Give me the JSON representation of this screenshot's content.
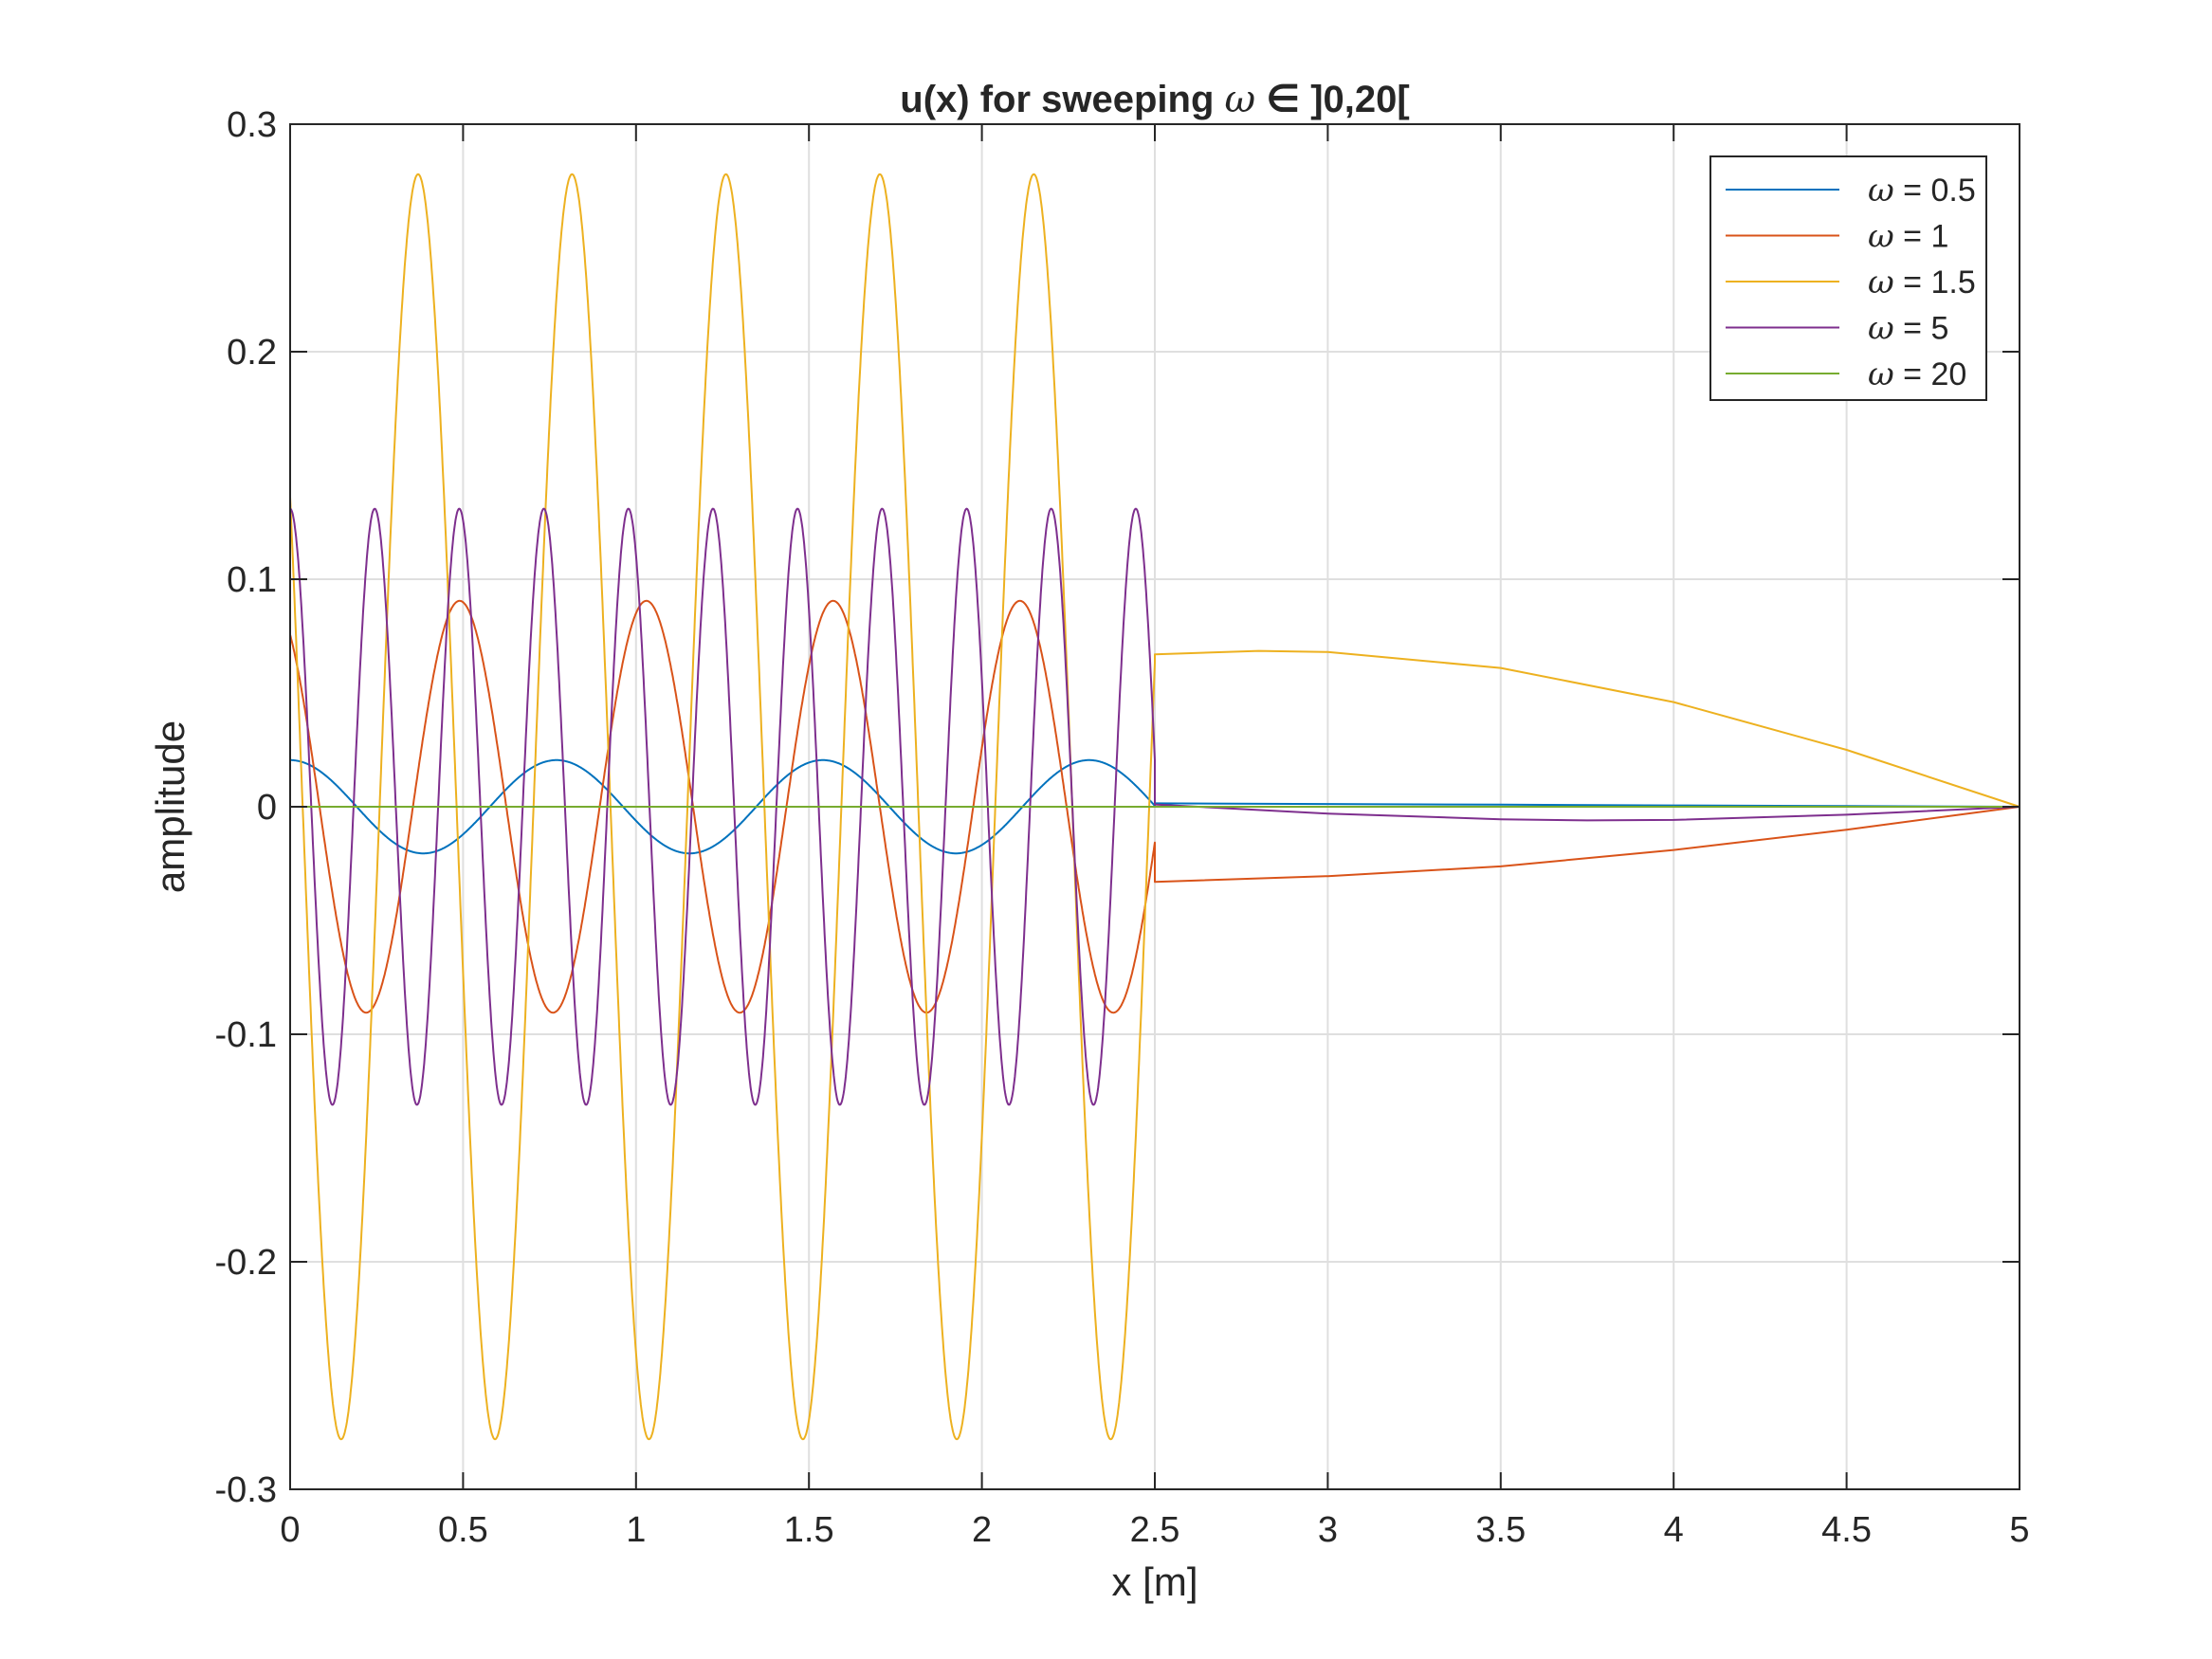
{
  "chart_data": {
    "type": "line",
    "title": {
      "prefix": "u(x) for sweeping ",
      "symbol": "ω",
      "suffix": " ∈ ]0,20["
    },
    "xlabel": "x [m]",
    "ylabel": "amplitude",
    "xlim": [
      0,
      5
    ],
    "ylim": [
      -0.3,
      0.3
    ],
    "xticks": [
      0,
      0.5,
      1,
      1.5,
      2,
      2.5,
      3,
      3.5,
      4,
      4.5,
      5
    ],
    "xtick_labels": [
      "0",
      "0.5",
      "1",
      "1.5",
      "2",
      "2.5",
      "3",
      "3.5",
      "4",
      "4.5",
      "5"
    ],
    "yticks": [
      -0.3,
      -0.2,
      -0.1,
      0,
      0.1,
      0.2,
      0.3
    ],
    "ytick_labels": [
      "-0.3",
      "-0.2",
      "-0.1",
      "0",
      "0.1",
      "0.2",
      "0.3"
    ],
    "grid": true,
    "legend_position": "top-right",
    "series": [
      {
        "symbol": "ω",
        "label": " = 0.5",
        "color": "#0072BD",
        "left_cosine": {
          "amplitude": 0.0205,
          "period": 0.77,
          "x_end": 2.5
        },
        "right_points": [
          [
            2.5,
            0.0015
          ],
          [
            3.0,
            0.0012
          ],
          [
            3.5,
            0.0009
          ],
          [
            4.0,
            0.0006
          ],
          [
            4.5,
            0.0003
          ],
          [
            5.0,
            0.0
          ]
        ]
      },
      {
        "symbol": "ω",
        "label": " = 1",
        "color": "#D95319",
        "left_cosine": {
          "amplitude": 0.0905,
          "period": 0.54,
          "phase_x": 0.49,
          "x_end": 2.5
        },
        "right_points": [
          [
            2.5,
            -0.033
          ],
          [
            3.0,
            -0.0305
          ],
          [
            3.5,
            -0.0262
          ],
          [
            4.0,
            -0.019
          ],
          [
            4.5,
            -0.0101
          ],
          [
            5.0,
            0.0
          ]
        ]
      },
      {
        "symbol": "ω",
        "label": " = 1.5",
        "color": "#EDB120",
        "left_cosine": {
          "amplitude": 0.278,
          "period": 0.445,
          "phase_x": 0.37,
          "x_end": 2.5
        },
        "right_points": [
          [
            2.5,
            0.067
          ],
          [
            2.8,
            0.0685
          ],
          [
            3.0,
            0.068
          ],
          [
            3.5,
            0.061
          ],
          [
            4.0,
            0.046
          ],
          [
            4.5,
            0.025
          ],
          [
            5.0,
            0.0
          ]
        ]
      },
      {
        "symbol": "ω",
        "label": " = 5",
        "color": "#7E2F8E",
        "left_cosine": {
          "amplitude": 0.131,
          "period": 0.2445,
          "phase_x": 0.0,
          "x_end": 2.5
        },
        "right_points": [
          [
            2.5,
            0.001
          ],
          [
            3.0,
            -0.003
          ],
          [
            3.5,
            -0.0055
          ],
          [
            3.75,
            -0.006
          ],
          [
            4.0,
            -0.0058
          ],
          [
            4.5,
            -0.0035
          ],
          [
            5.0,
            0.0
          ]
        ]
      },
      {
        "symbol": "ω",
        "label": " = 20",
        "color": "#77AC30",
        "right_points": [
          [
            0,
            0.0
          ],
          [
            5.0,
            0.0
          ]
        ]
      }
    ]
  }
}
